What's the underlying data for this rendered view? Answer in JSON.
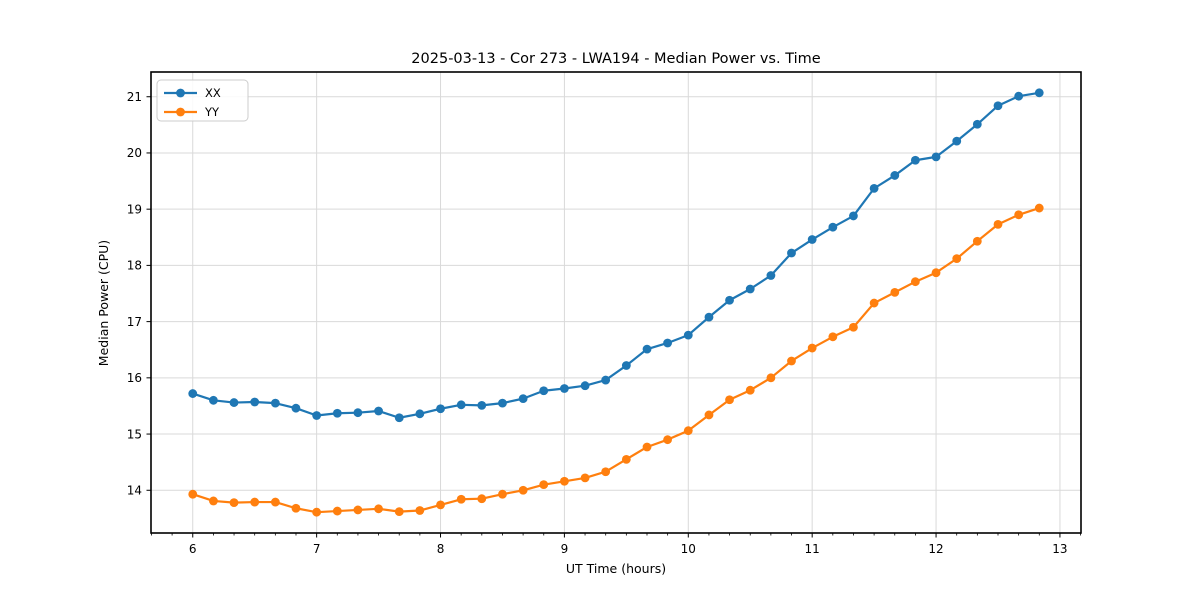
{
  "chart_data": {
    "type": "line",
    "title": "2025-03-13 - Cor 273 - LWA194 - Median Power vs. Time",
    "xlabel": "UT Time (hours)",
    "ylabel": "Median Power (CPU)",
    "xlim": [
      5.663,
      13.17
    ],
    "ylim": [
      13.24,
      21.44
    ],
    "x_ticks": [
      6,
      7,
      8,
      9,
      10,
      11,
      12,
      13
    ],
    "y_ticks": [
      14,
      15,
      16,
      17,
      18,
      19,
      20,
      21
    ],
    "x_minor_step": 0.1666667,
    "grid": true,
    "grid_color": "#d9d9d9",
    "spine_color": "#000000",
    "legend_position": "upper-left",
    "legend_labels": [
      "XX",
      "YY"
    ],
    "x": [
      6.0,
      6.167,
      6.333,
      6.5,
      6.667,
      6.833,
      7.0,
      7.167,
      7.333,
      7.5,
      7.667,
      7.833,
      8.0,
      8.167,
      8.333,
      8.5,
      8.667,
      8.833,
      9.0,
      9.167,
      9.333,
      9.5,
      9.667,
      9.833,
      10.0,
      10.167,
      10.333,
      10.5,
      10.667,
      10.833,
      11.0,
      11.167,
      11.333,
      11.5,
      11.667,
      11.833,
      12.0,
      12.167,
      12.333,
      12.5,
      12.667,
      12.833
    ],
    "series": [
      {
        "name": "XX",
        "color": "#1f77b4",
        "values": [
          15.72,
          15.6,
          15.56,
          15.57,
          15.55,
          15.46,
          15.33,
          15.37,
          15.38,
          15.41,
          15.29,
          15.36,
          15.45,
          15.52,
          15.51,
          15.55,
          15.63,
          15.77,
          15.81,
          15.86,
          15.96,
          16.22,
          16.51,
          16.62,
          16.76,
          17.08,
          17.38,
          17.58,
          17.82,
          18.22,
          18.46,
          18.68,
          18.88,
          19.37,
          19.6,
          19.87,
          19.93,
          20.21,
          20.51,
          20.84,
          21.01,
          21.07
        ]
      },
      {
        "name": "YY",
        "color": "#ff7f0e",
        "values": [
          13.93,
          13.81,
          13.78,
          13.79,
          13.79,
          13.68,
          13.61,
          13.63,
          13.65,
          13.67,
          13.62,
          13.64,
          13.74,
          13.84,
          13.85,
          13.93,
          14.0,
          14.1,
          14.16,
          14.22,
          14.33,
          14.55,
          14.77,
          14.9,
          15.06,
          15.34,
          15.61,
          15.78,
          16.0,
          16.3,
          16.53,
          16.73,
          16.9,
          17.33,
          17.52,
          17.71,
          17.87,
          18.12,
          18.43,
          18.73,
          18.9,
          19.02
        ]
      }
    ]
  }
}
